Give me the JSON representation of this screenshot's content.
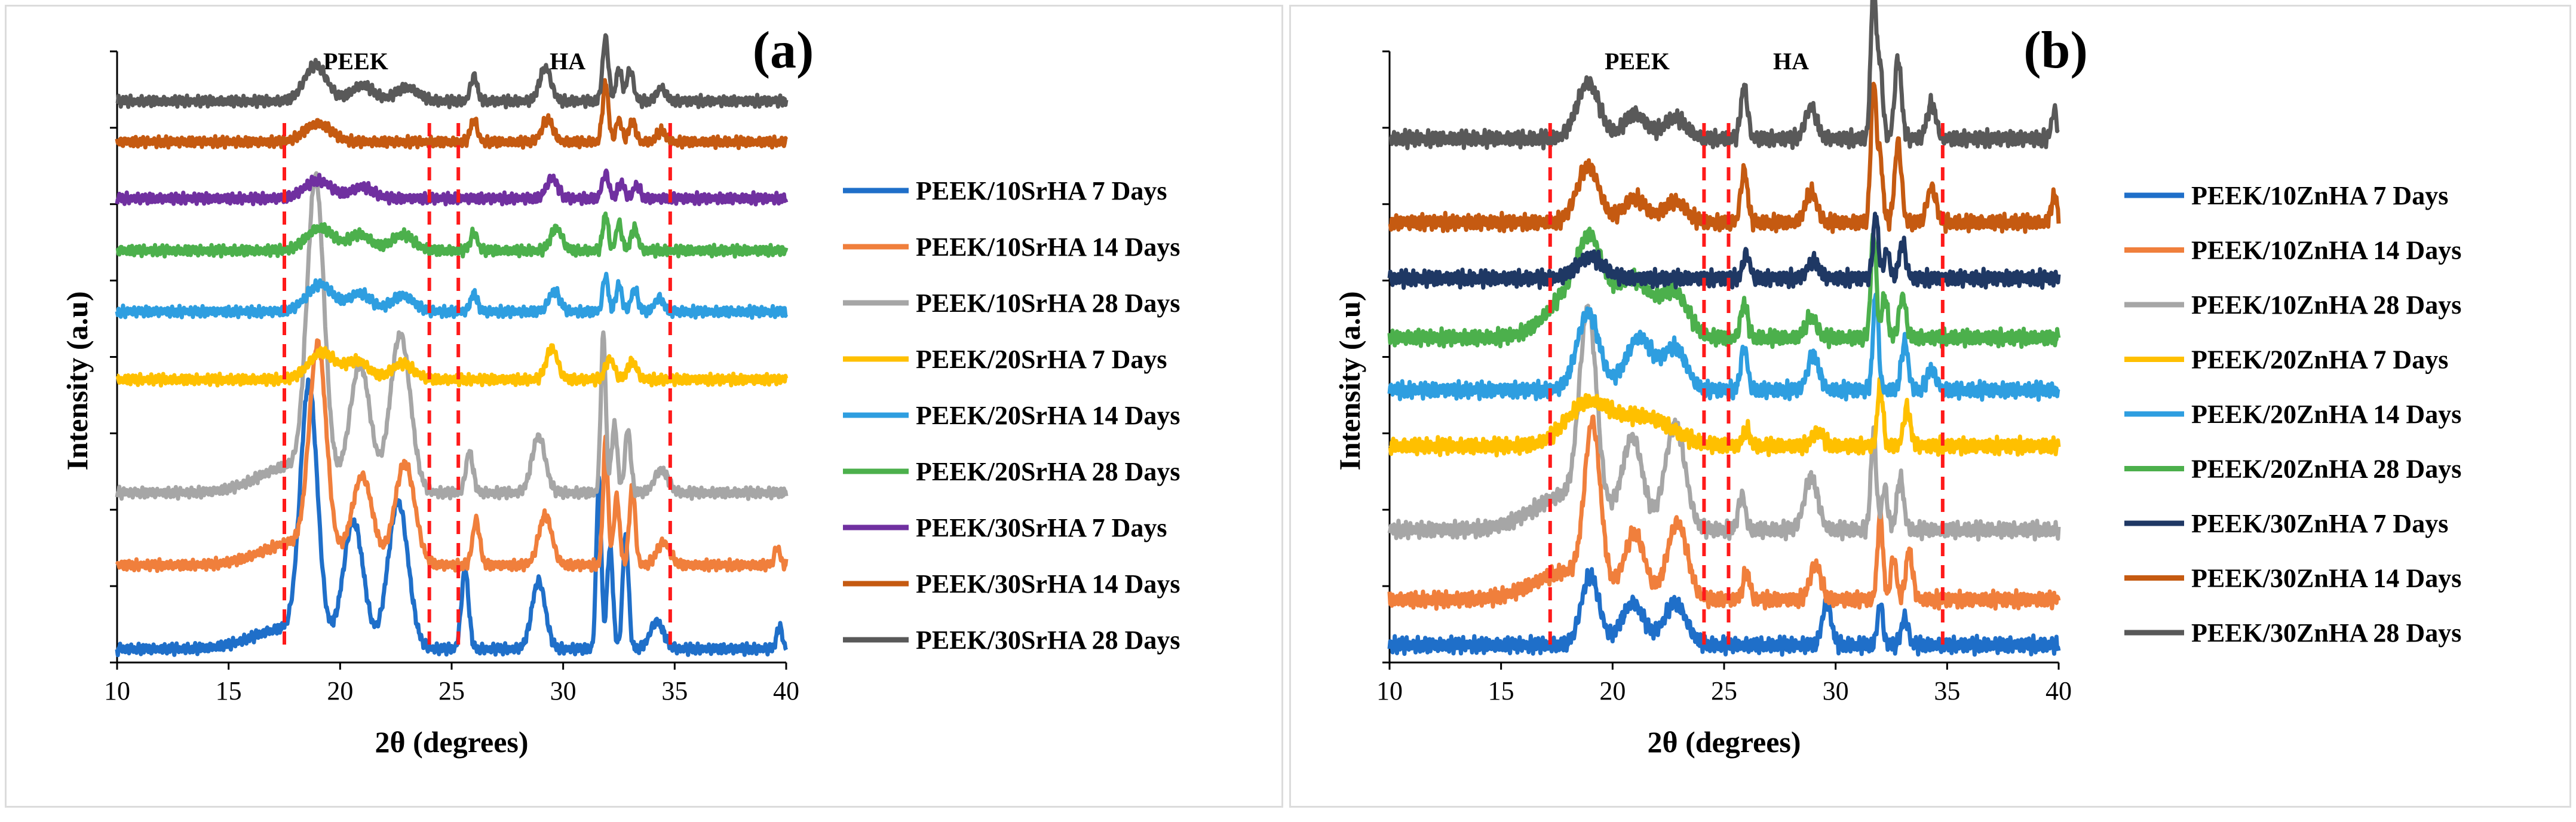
{
  "chart_data": [
    {
      "type": "line",
      "panel_label": "(a)",
      "xlabel": "2θ (degrees)",
      "ylabel": "Intensity (a.u)",
      "xlim": [
        10,
        40
      ],
      "xticks": [
        "10",
        "15",
        "20",
        "25",
        "30",
        "35",
        "40"
      ],
      "y_units": "stacked traces (arbitrary)",
      "region_labels": [
        {
          "text": "PEEK",
          "x": 20.7
        },
        {
          "text": "HA",
          "x": 30.2
        }
      ],
      "reference_lines_x": [
        17.5,
        24.0,
        25.3,
        34.8
      ],
      "series": [
        {
          "name": "PEEK/10SrHA 7 Days",
          "color": "#1f6fc9",
          "baseline": 0.6,
          "scale": 1.0,
          "peaks": [
            [
              17.6,
              0.9,
              1.5
            ],
            [
              18.6,
              11.0,
              0.38
            ],
            [
              20.6,
              5.5,
              0.45
            ],
            [
              22.6,
              6.5,
              0.45
            ],
            [
              25.6,
              3.5,
              0.16
            ],
            [
              28.9,
              3.0,
              0.3
            ],
            [
              31.6,
              7.5,
              0.11
            ],
            [
              32.1,
              4.5,
              0.13
            ],
            [
              32.8,
              5.0,
              0.13
            ],
            [
              34.2,
              1.2,
              0.3
            ],
            [
              39.7,
              1.0,
              0.12
            ]
          ]
        },
        {
          "name": "PEEK/10SrHA 14 Days",
          "color": "#f07f3c",
          "baseline": 4.3,
          "scale": 1.0,
          "peaks": [
            [
              18.0,
              1.0,
              1.5
            ],
            [
              19.0,
              9.0,
              0.38
            ],
            [
              21.0,
              3.8,
              0.45
            ],
            [
              22.9,
              4.5,
              0.45
            ],
            [
              26.1,
              2.0,
              0.16
            ],
            [
              29.2,
              2.2,
              0.3
            ],
            [
              31.9,
              5.5,
              0.11
            ],
            [
              32.4,
              3.0,
              0.13
            ],
            [
              33.1,
              3.5,
              0.13
            ],
            [
              34.5,
              1.0,
              0.3
            ],
            [
              39.6,
              0.8,
              0.12
            ]
          ]
        },
        {
          "name": "PEEK/10SrHA 28 Days",
          "color": "#a6a6a6",
          "baseline": 7.5,
          "scale": 1.0,
          "peaks": [
            [
              17.9,
              1.2,
              1.5
            ],
            [
              18.9,
              13.0,
              0.38
            ],
            [
              20.9,
              5.5,
              0.45
            ],
            [
              22.7,
              7.0,
              0.45
            ],
            [
              25.8,
              1.8,
              0.16
            ],
            [
              28.9,
              2.5,
              0.3
            ],
            [
              31.8,
              7.0,
              0.11
            ],
            [
              32.3,
              3.0,
              0.13
            ],
            [
              32.9,
              2.8,
              0.13
            ],
            [
              34.4,
              1.0,
              0.3
            ]
          ]
        },
        {
          "name": "PEEK/20SrHA 7 Days",
          "color": "#ffc000",
          "baseline": 12.5,
          "scale": 1.0,
          "peaks": [
            [
              19.2,
              1.2,
              0.6
            ],
            [
              20.8,
              0.8,
              0.5
            ],
            [
              22.8,
              0.7,
              0.5
            ],
            [
              29.5,
              1.4,
              0.25
            ],
            [
              32.1,
              0.9,
              0.2
            ],
            [
              33.1,
              0.8,
              0.2
            ]
          ]
        },
        {
          "name": "PEEK/20SrHA 14 Days",
          "color": "#2e9ee0",
          "baseline": 15.5,
          "scale": 1.0,
          "peaks": [
            [
              19.1,
              1.2,
              0.6
            ],
            [
              20.9,
              0.8,
              0.5
            ],
            [
              22.8,
              0.7,
              0.5
            ],
            [
              26.0,
              0.8,
              0.15
            ],
            [
              29.6,
              0.9,
              0.25
            ],
            [
              31.9,
              1.6,
              0.12
            ],
            [
              32.5,
              1.2,
              0.13
            ],
            [
              33.2,
              1.0,
              0.15
            ],
            [
              34.3,
              0.6,
              0.2
            ]
          ]
        },
        {
          "name": "PEEK/20SrHA 28 Days",
          "color": "#4cb04c",
          "baseline": 18.2,
          "scale": 1.0,
          "peaks": [
            [
              19.1,
              1.0,
              0.6
            ],
            [
              20.9,
              0.7,
              0.5
            ],
            [
              22.8,
              0.7,
              0.5
            ],
            [
              26.0,
              0.8,
              0.15
            ],
            [
              29.7,
              1.0,
              0.25
            ],
            [
              31.9,
              1.6,
              0.12
            ],
            [
              32.5,
              1.2,
              0.13
            ],
            [
              33.2,
              1.0,
              0.15
            ]
          ]
        },
        {
          "name": "PEEK/30SrHA 7 Days",
          "color": "#7030a0",
          "baseline": 20.5,
          "scale": 1.0,
          "peaks": [
            [
              19.0,
              0.8,
              0.6
            ],
            [
              21.0,
              0.5,
              0.5
            ],
            [
              29.5,
              0.9,
              0.25
            ],
            [
              31.9,
              1.1,
              0.15
            ],
            [
              32.6,
              0.7,
              0.15
            ],
            [
              33.3,
              0.6,
              0.15
            ]
          ]
        },
        {
          "name": "PEEK/30SrHA 14 Days",
          "color": "#c55a11",
          "baseline": 23.0,
          "scale": 1.0,
          "peaks": [
            [
              19.0,
              0.8,
              0.6
            ],
            [
              26.0,
              1.0,
              0.15
            ],
            [
              29.3,
              1.0,
              0.25
            ],
            [
              31.9,
              2.6,
              0.13
            ],
            [
              32.5,
              1.0,
              0.13
            ],
            [
              33.1,
              0.9,
              0.15
            ],
            [
              34.4,
              0.5,
              0.2
            ]
          ]
        },
        {
          "name": "PEEK/30SrHA 28 Days",
          "color": "#595959",
          "baseline": 24.8,
          "scale": 1.0,
          "peaks": [
            [
              18.9,
              1.6,
              0.5
            ],
            [
              21.0,
              0.7,
              0.5
            ],
            [
              23.0,
              0.6,
              0.5
            ],
            [
              26.0,
              1.1,
              0.15
            ],
            [
              29.2,
              1.5,
              0.25
            ],
            [
              31.9,
              2.8,
              0.13
            ],
            [
              32.5,
              1.4,
              0.13
            ],
            [
              33.0,
              1.4,
              0.15
            ],
            [
              34.4,
              0.6,
              0.2
            ]
          ]
        }
      ]
    },
    {
      "type": "line",
      "panel_label": "(b)",
      "xlabel": "2θ (degrees)",
      "ylabel": "Intensity (a.u)",
      "xlim": [
        10,
        40
      ],
      "xticks": [
        "10",
        "15",
        "20",
        "25",
        "30",
        "35",
        "40"
      ],
      "y_units": "stacked traces (arbitrary)",
      "region_labels": [
        {
          "text": "PEEK",
          "x": 21.1
        },
        {
          "text": "HA",
          "x": 28.0
        }
      ],
      "reference_lines_x": [
        17.2,
        24.1,
        25.2,
        34.8
      ],
      "series": [
        {
          "name": "PEEK/10ZnHA 7 Days",
          "color": "#1f6fc9",
          "baseline": 0.5,
          "scale": 1.0,
          "peaks": [
            [
              19.0,
              2.0,
              0.4
            ],
            [
              20.9,
              1.2,
              0.5
            ],
            [
              22.8,
              1.2,
              0.5
            ],
            [
              29.6,
              1.2,
              0.2
            ],
            [
              32.0,
              1.2,
              0.12
            ],
            [
              33.1,
              0.8,
              0.15
            ]
          ]
        },
        {
          "name": "PEEK/10ZnHA 14 Days",
          "color": "#f07f3c",
          "baseline": 1.8,
          "scale": 1.0,
          "peaks": [
            [
              18.0,
              0.8,
              1.5
            ],
            [
              19.1,
              4.5,
              0.35
            ],
            [
              21.0,
              1.8,
              0.45
            ],
            [
              22.9,
              2.2,
              0.45
            ],
            [
              26.0,
              0.8,
              0.15
            ],
            [
              29.1,
              1.0,
              0.25
            ],
            [
              32.0,
              2.5,
              0.12
            ],
            [
              32.6,
              1.2,
              0.13
            ],
            [
              33.3,
              1.4,
              0.15
            ]
          ]
        },
        {
          "name": "PEEK/10ZnHA 28 Days",
          "color": "#a6a6a6",
          "baseline": 3.8,
          "scale": 1.0,
          "peaks": [
            [
              18.0,
              1.0,
              1.5
            ],
            [
              18.9,
              5.5,
              0.38
            ],
            [
              20.9,
              2.5,
              0.45
            ],
            [
              22.8,
              3.0,
              0.45
            ],
            [
              25.8,
              1.0,
              0.15
            ],
            [
              28.9,
              1.5,
              0.3
            ],
            [
              31.7,
              2.8,
              0.12
            ],
            [
              32.2,
              1.2,
              0.13
            ],
            [
              32.9,
              1.5,
              0.15
            ]
          ]
        },
        {
          "name": "PEEK/20ZnHA 7 Days",
          "color": "#ffc000",
          "baseline": 6.2,
          "scale": 1.0,
          "peaks": [
            [
              18.9,
              1.2,
              1.0
            ],
            [
              21.5,
              0.8,
              1.2
            ],
            [
              26.0,
              0.5,
              0.15
            ],
            [
              29.2,
              0.4,
              0.25
            ],
            [
              32.0,
              1.8,
              0.12
            ],
            [
              33.2,
              1.1,
              0.15
            ]
          ]
        },
        {
          "name": "PEEK/20ZnHA 14 Days",
          "color": "#2e9ee0",
          "baseline": 7.8,
          "scale": 1.0,
          "peaks": [
            [
              18.9,
              2.2,
              0.5
            ],
            [
              21.2,
              1.5,
              0.6
            ],
            [
              22.8,
              1.2,
              0.5
            ],
            [
              25.9,
              1.2,
              0.15
            ],
            [
              29.0,
              1.0,
              0.25
            ],
            [
              31.8,
              2.8,
              0.12
            ],
            [
              33.1,
              1.4,
              0.15
            ],
            [
              34.3,
              0.6,
              0.2
            ]
          ]
        },
        {
          "name": "PEEK/20ZnHA 28 Days",
          "color": "#4cb04c",
          "baseline": 9.3,
          "scale": 1.0,
          "peaks": [
            [
              18.5,
              1.5,
              1.2
            ],
            [
              19.0,
              1.5,
              0.5
            ],
            [
              21.0,
              1.5,
              0.8
            ],
            [
              22.8,
              1.2,
              0.6
            ],
            [
              25.9,
              1.0,
              0.15
            ],
            [
              28.9,
              0.6,
              0.25
            ],
            [
              31.7,
              3.0,
              0.12
            ],
            [
              32.2,
              1.2,
              0.13
            ],
            [
              33.0,
              1.2,
              0.15
            ]
          ]
        },
        {
          "name": "PEEK/30ZnHA 7 Days",
          "color": "#1f3864",
          "baseline": 11.0,
          "scale": 1.0,
          "peaks": [
            [
              19.0,
              0.6,
              0.6
            ],
            [
              26.0,
              0.7,
              0.15
            ],
            [
              29.0,
              0.5,
              0.25
            ],
            [
              31.8,
              1.8,
              0.12
            ],
            [
              32.3,
              0.8,
              0.13
            ],
            [
              33.0,
              1.0,
              0.15
            ]
          ]
        },
        {
          "name": "PEEK/30ZnHA 14 Days",
          "color": "#c55a11",
          "baseline": 12.6,
          "scale": 1.0,
          "peaks": [
            [
              18.9,
              1.6,
              0.5
            ],
            [
              21.0,
              0.7,
              0.5
            ],
            [
              22.8,
              0.6,
              0.5
            ],
            [
              25.9,
              1.5,
              0.15
            ],
            [
              28.9,
              0.9,
              0.25
            ],
            [
              31.7,
              4.0,
              0.12
            ],
            [
              32.0,
              1.8,
              0.12
            ],
            [
              32.8,
              2.3,
              0.15
            ],
            [
              34.3,
              1.0,
              0.2
            ],
            [
              39.8,
              0.8,
              0.12
            ]
          ]
        },
        {
          "name": "PEEK/30ZnHA 28 Days",
          "color": "#595959",
          "baseline": 15.0,
          "scale": 1.0,
          "peaks": [
            [
              18.9,
              1.6,
              0.5
            ],
            [
              21.0,
              0.7,
              0.5
            ],
            [
              22.8,
              0.6,
              0.5
            ],
            [
              25.9,
              1.5,
              0.15
            ],
            [
              28.9,
              0.9,
              0.25
            ],
            [
              31.7,
              4.5,
              0.12
            ],
            [
              32.0,
              2.0,
              0.12
            ],
            [
              32.8,
              2.3,
              0.15
            ],
            [
              34.3,
              1.0,
              0.2
            ],
            [
              39.8,
              0.8,
              0.12
            ]
          ]
        }
      ]
    }
  ]
}
